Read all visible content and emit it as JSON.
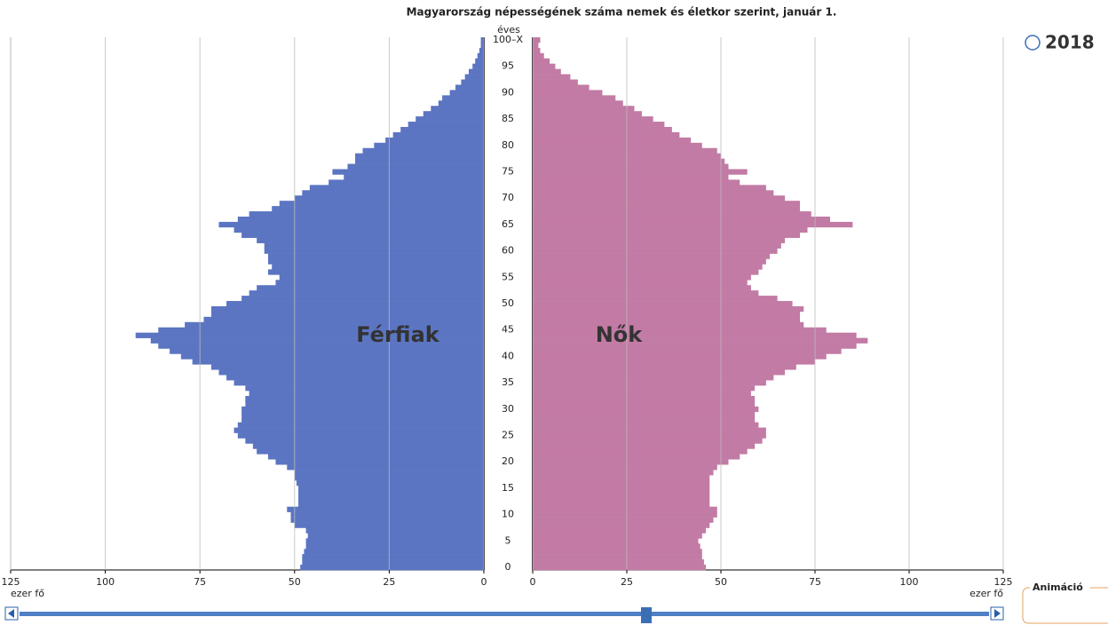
{
  "chart_data": {
    "type": "pyramid",
    "title": "Magyarország népességének száma nemek és életkor szerint, január 1.",
    "y_axis_label": "éves",
    "x_axis_label": "ezer fő",
    "year": "2018",
    "animation_label": "Animáció",
    "categories": [
      "0",
      null,
      null,
      null,
      null,
      "5",
      null,
      null,
      null,
      null,
      "10",
      null,
      null,
      null,
      null,
      "15",
      null,
      null,
      null,
      null,
      "20",
      null,
      null,
      null,
      null,
      "25",
      null,
      null,
      null,
      null,
      "30",
      null,
      null,
      null,
      null,
      "35",
      null,
      null,
      null,
      null,
      "40",
      null,
      null,
      null,
      null,
      "45",
      null,
      null,
      null,
      null,
      "50",
      null,
      null,
      null,
      null,
      "55",
      null,
      null,
      null,
      null,
      "60",
      null,
      null,
      null,
      null,
      "65",
      null,
      null,
      null,
      null,
      "70",
      null,
      null,
      null,
      null,
      "75",
      null,
      null,
      null,
      null,
      "80",
      null,
      null,
      null,
      null,
      "85",
      null,
      null,
      null,
      null,
      "90",
      null,
      null,
      null,
      null,
      "95",
      null,
      null,
      null,
      null,
      "100–X"
    ],
    "series": [
      {
        "name": "Férfiak",
        "color": "#5b75c2",
        "side": "left",
        "values": [
          48.5,
          48,
          48,
          47.5,
          47,
          47,
          46.5,
          47,
          50,
          51,
          51,
          52,
          49,
          49,
          49,
          49,
          49.5,
          50,
          50,
          52,
          55,
          57,
          60,
          61,
          63,
          65,
          66,
          65,
          64,
          64,
          64,
          63,
          63,
          62,
          63,
          66,
          68,
          70,
          72,
          77,
          80,
          83,
          86,
          88,
          92,
          86,
          79,
          74,
          72,
          72,
          68,
          64,
          62,
          60,
          55,
          54,
          57,
          56,
          57,
          57,
          58,
          58,
          60,
          64,
          66,
          70,
          65,
          62,
          56,
          54,
          50,
          48,
          46,
          41,
          37,
          40,
          36,
          34,
          34,
          32,
          29,
          26,
          24,
          22,
          20,
          18,
          16,
          14,
          12,
          11,
          9,
          7.5,
          6,
          5,
          4,
          3,
          2.3,
          1.7,
          1.2,
          0.8,
          0.8
        ]
      },
      {
        "name": "Nők",
        "color": "#c27ba5",
        "side": "right",
        "values": [
          46,
          45.5,
          45,
          45,
          44.5,
          44,
          45,
          46,
          47,
          48,
          49,
          49,
          47,
          47,
          47,
          47,
          47,
          47,
          48,
          49,
          52,
          55,
          57,
          59,
          61,
          62,
          62,
          60,
          59,
          59,
          60,
          59,
          59,
          58,
          59,
          62,
          64,
          67,
          70,
          75,
          78,
          82,
          86,
          89,
          86,
          78,
          72,
          71,
          71,
          72,
          69,
          65,
          60,
          58,
          57,
          58,
          60,
          61,
          62,
          63,
          65,
          66,
          67,
          71,
          73,
          85,
          79,
          74,
          71,
          71,
          67,
          64,
          62,
          55,
          52,
          57,
          52,
          51,
          50,
          49,
          45,
          42,
          39,
          37,
          35,
          32,
          29,
          27,
          24,
          22,
          18.5,
          15,
          12,
          10,
          7.5,
          6,
          4.5,
          3,
          2,
          1.5,
          2
        ]
      }
    ],
    "xlim": [
      0,
      125
    ],
    "xticks": [
      0,
      25,
      50,
      75,
      100,
      125
    ],
    "grid": true
  }
}
